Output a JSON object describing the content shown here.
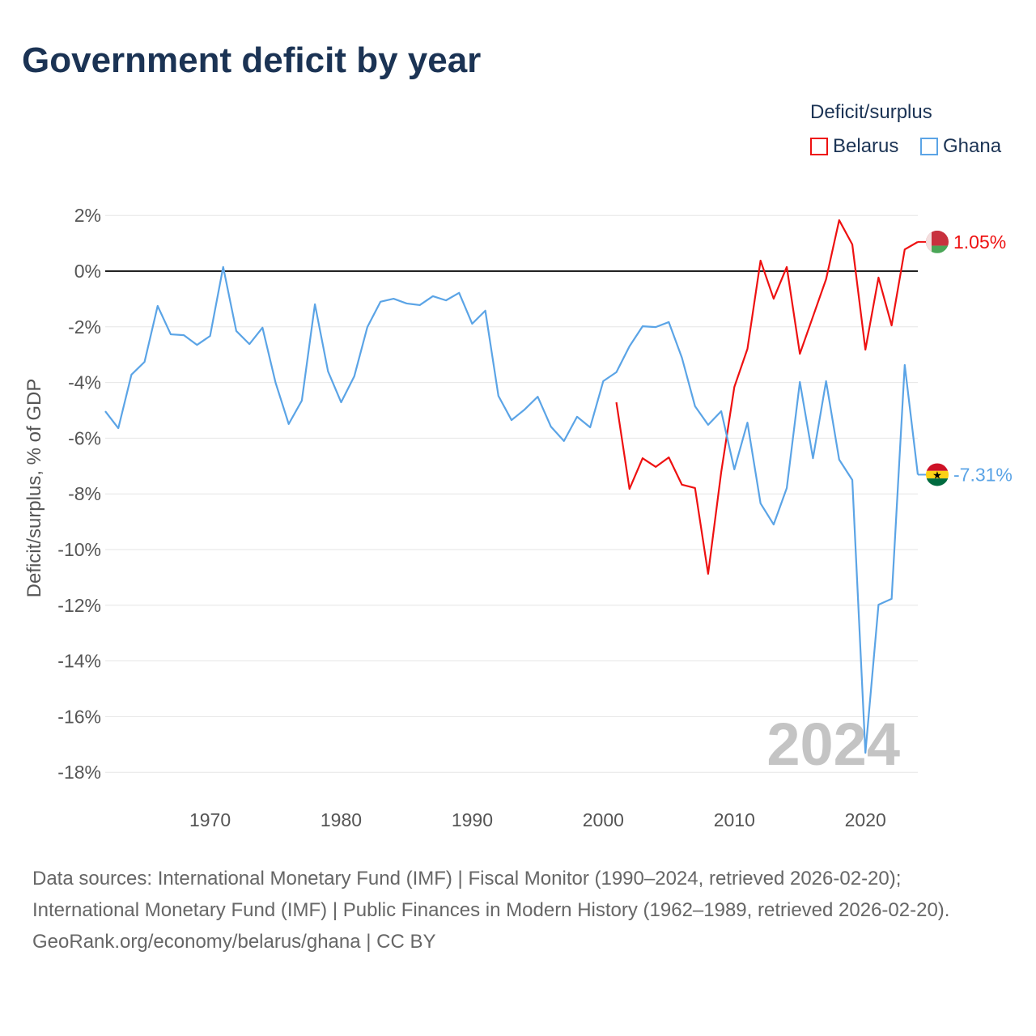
{
  "title": "Government deficit by year",
  "legend": {
    "title": "Deficit/surplus",
    "items": [
      {
        "label": "Belarus",
        "color": "#ee1111"
      },
      {
        "label": "Ghana",
        "color": "#5ba4e6"
      }
    ]
  },
  "watermark_year": "2024",
  "footer": {
    "sources": "Data sources: International Monetary Fund (IMF) | Fiscal Monitor (1990–2024, retrieved 2026-02-20); International Monetary Fund (IMF) | Public Finances in Modern History (1962–1989, retrieved 2026-02-20).",
    "credit": "GeoRank.org/economy/belarus/ghana | CC BY"
  },
  "chart_data": {
    "type": "line",
    "title": "Government deficit by year",
    "xlabel": "",
    "ylabel": "Deficit/surplus, % of GDP",
    "xlim": [
      1962,
      2024
    ],
    "ylim": [
      -18,
      2
    ],
    "x_ticks": [
      "1970",
      "1980",
      "1990",
      "2000",
      "2010",
      "2020"
    ],
    "y_ticks": [
      "2%",
      "0%",
      "-2%",
      "-4%",
      "-6%",
      "-8%",
      "-10%",
      "-12%",
      "-14%",
      "-16%",
      "-18%"
    ],
    "grid": true,
    "legend_position": "top-right",
    "series": [
      {
        "name": "Belarus",
        "color": "#ee1111",
        "end_label": "1.05%",
        "start_year": 2001,
        "values": [
          -4.71,
          -7.82,
          -6.72,
          -7.03,
          -6.69,
          -7.67,
          -7.79,
          -10.87,
          -7.21,
          -4.16,
          -2.79,
          0.38,
          -0.99,
          0.15,
          -2.97,
          -1.63,
          -0.29,
          1.83,
          0.96,
          -2.82,
          -0.23,
          -1.95,
          0.78,
          1.05
        ]
      },
      {
        "name": "Ghana",
        "color": "#5ba4e6",
        "end_label": "-7.31%",
        "start_year": 1962,
        "values": [
          -5.03,
          -5.64,
          -3.72,
          -3.26,
          -1.25,
          -2.27,
          -2.3,
          -2.65,
          -2.33,
          0.15,
          -2.15,
          -2.62,
          -2.03,
          -4.01,
          -5.49,
          -4.65,
          -1.19,
          -3.6,
          -4.71,
          -3.78,
          -2.01,
          -1.1,
          -0.99,
          -1.16,
          -1.22,
          -0.9,
          -1.05,
          -0.78,
          -1.89,
          -1.42,
          -4.48,
          -5.35,
          -4.97,
          -4.51,
          -5.58,
          -6.1,
          -5.23,
          -5.61,
          -3.95,
          -3.63,
          -2.7,
          -1.98,
          -2.01,
          -1.83,
          -3.11,
          -4.85,
          -5.52,
          -5.03,
          -7.12,
          -5.44,
          -8.34,
          -9.1,
          -7.79,
          -3.98,
          -6.72,
          -3.95,
          -6.77,
          -7.5,
          -17.3,
          -11.98,
          -11.77,
          -3.37,
          -7.31
        ]
      }
    ]
  }
}
